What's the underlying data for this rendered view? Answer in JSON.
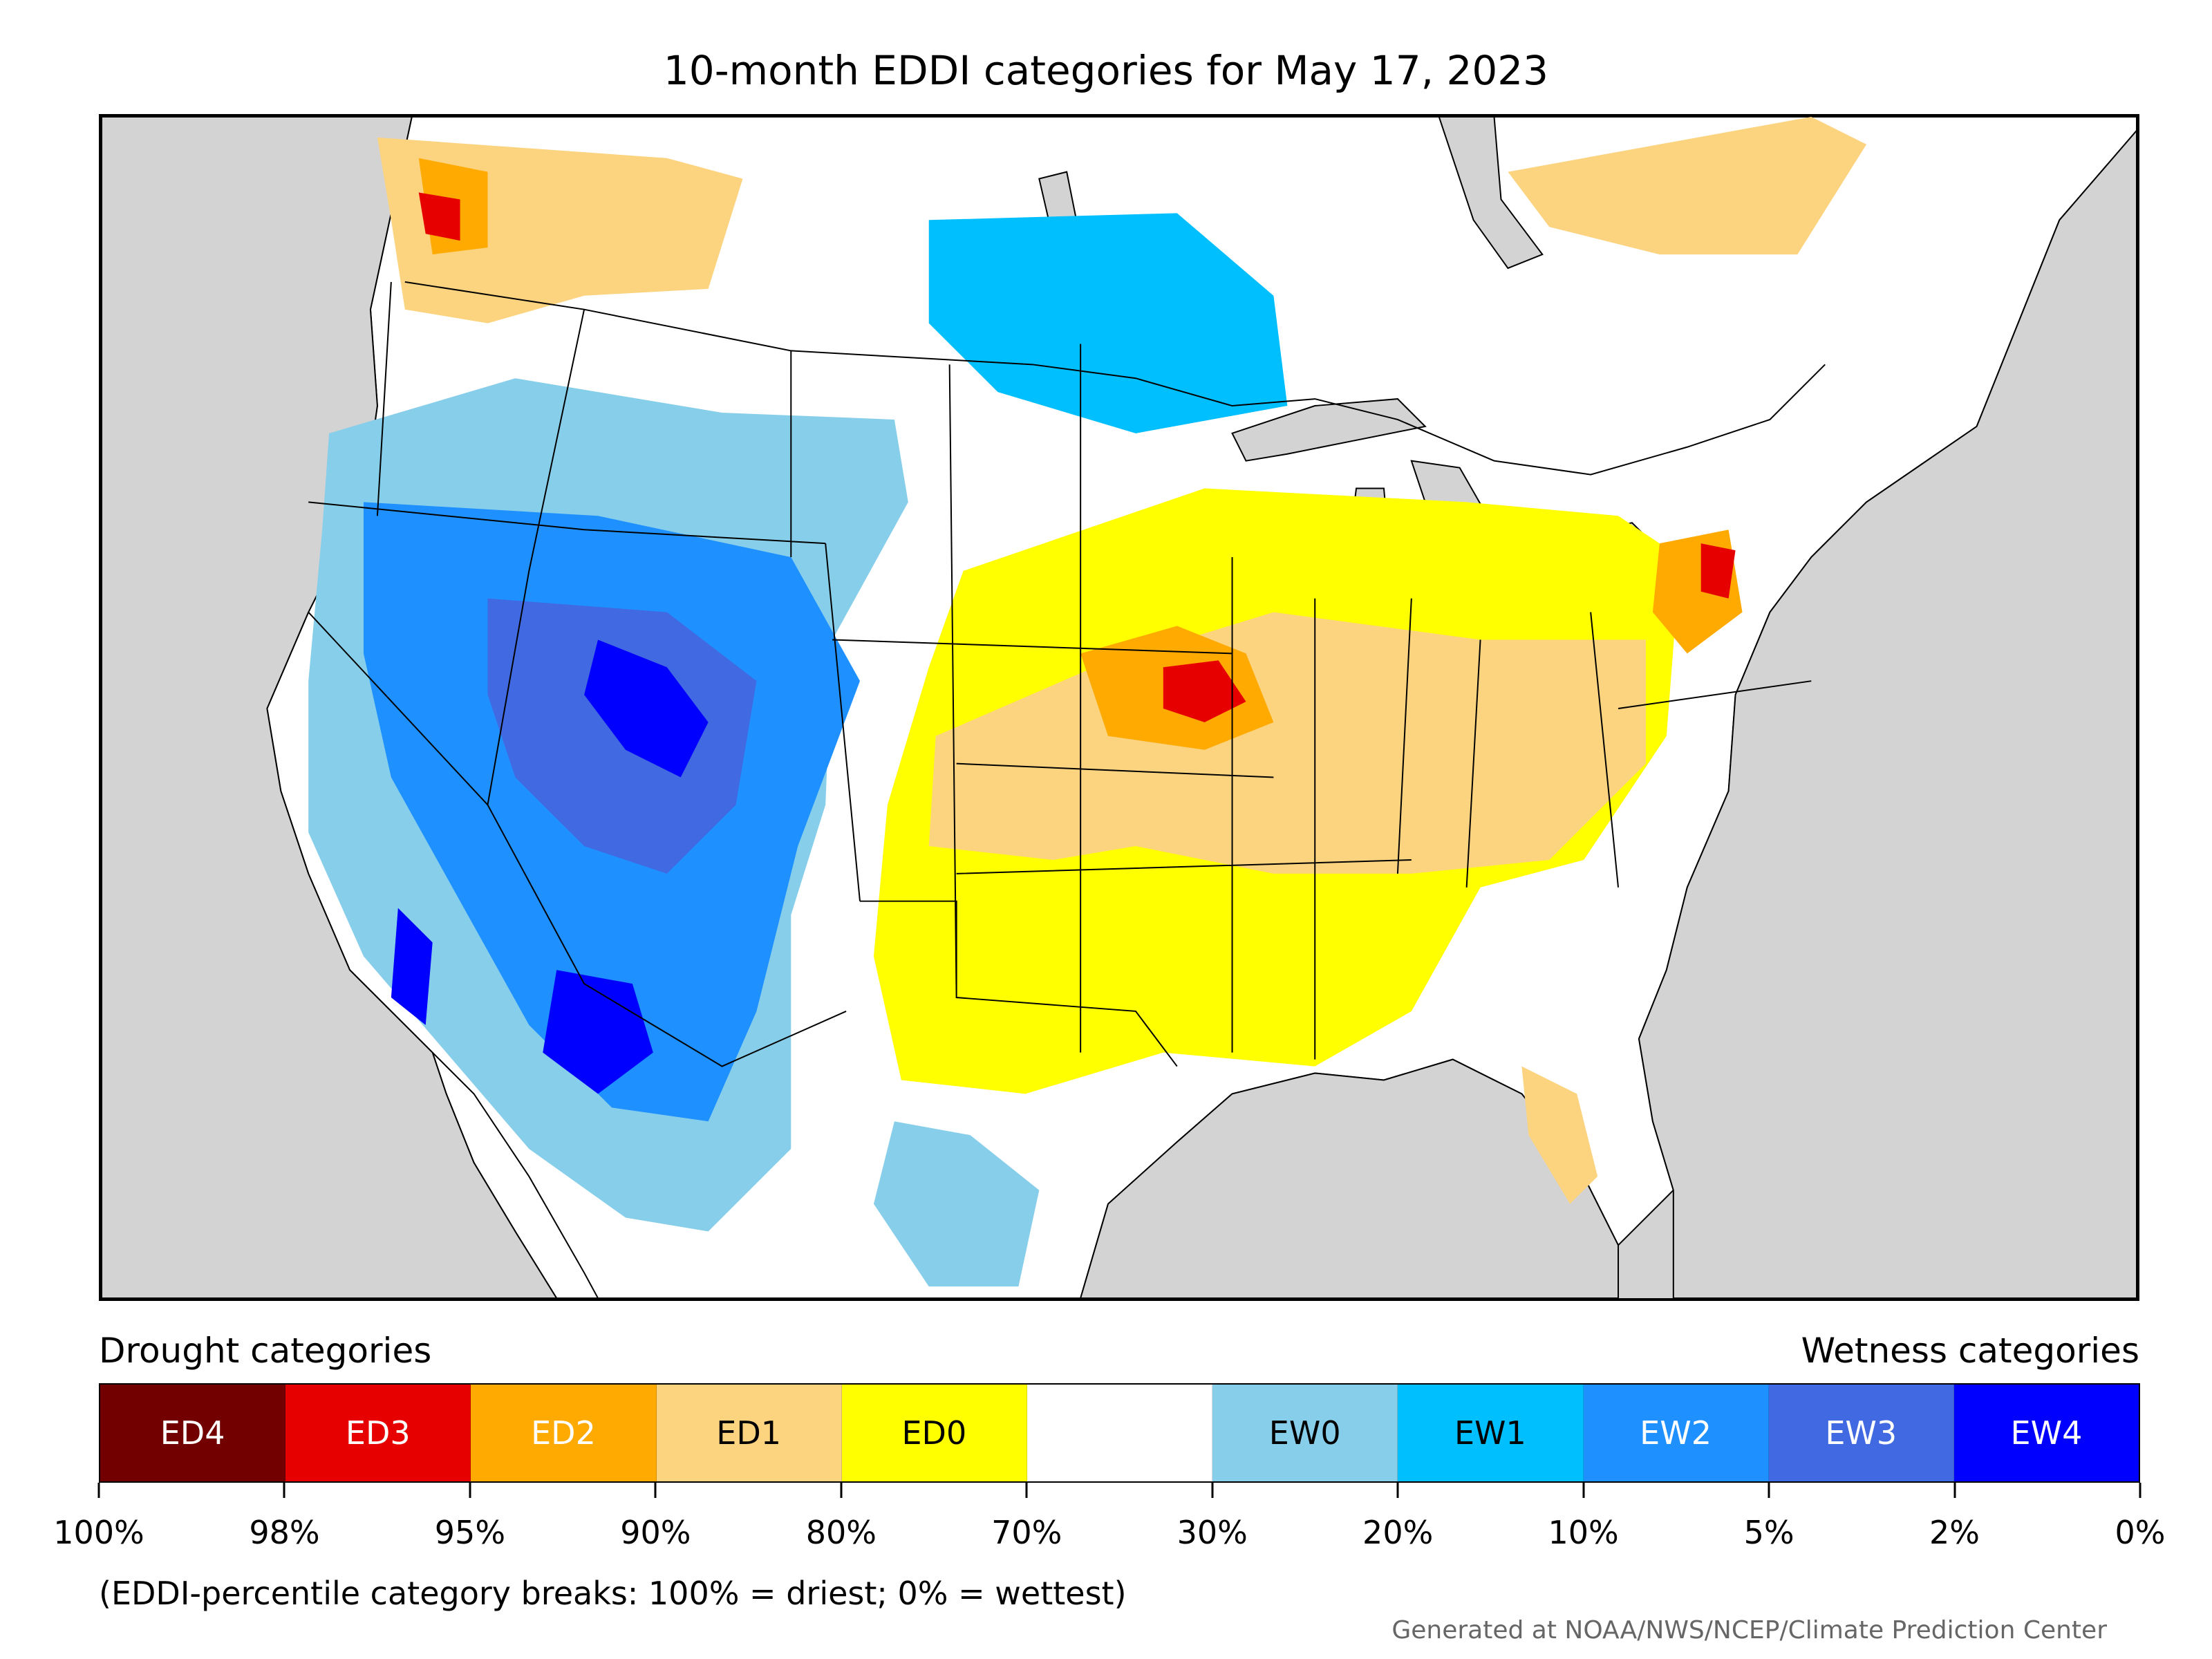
{
  "title": "10-month EDDI categories for May 17, 2023",
  "map": {
    "region": "contiguous-united-states",
    "colors": {
      "ocean": "#d3d3d3",
      "land": "#ffffff",
      "borders": "#000000"
    },
    "regions": [
      {
        "name": "pacific-northwest",
        "category": "ED1"
      },
      {
        "name": "western-washington-hotspot",
        "category": "ED3"
      },
      {
        "name": "great-basin-southwest",
        "category": "EW2"
      },
      {
        "name": "utah-arizona-core",
        "category": "EW4"
      },
      {
        "name": "southern-plains-midwest",
        "category": "ED1"
      },
      {
        "name": "iowa-illinois-hotspot",
        "category": "ED3"
      },
      {
        "name": "northern-plains-canada",
        "category": "EW1"
      },
      {
        "name": "ohio-valley",
        "category": "ED1"
      },
      {
        "name": "new-england-coast",
        "category": "ED2"
      },
      {
        "name": "south-texas-coast",
        "category": "EW0"
      },
      {
        "name": "florida",
        "category": "ED1"
      },
      {
        "name": "quebec",
        "category": "ED1"
      }
    ]
  },
  "legend": {
    "drought_label": "Drought categories",
    "wetness_label": "Wetness categories",
    "categories": [
      {
        "label": "ED4",
        "color": "#730000",
        "text_color": "#ffffff"
      },
      {
        "label": "ED3",
        "color": "#e60000",
        "text_color": "#ffffff"
      },
      {
        "label": "ED2",
        "color": "#ffaa00",
        "text_color": "#ffffff"
      },
      {
        "label": "ED1",
        "color": "#fcd37f",
        "text_color": "#000000"
      },
      {
        "label": "ED0",
        "color": "#ffff00",
        "text_color": "#000000"
      },
      {
        "label": "",
        "color": "#ffffff",
        "text_color": "#000000"
      },
      {
        "label": "EW0",
        "color": "#87ceeb",
        "text_color": "#000000"
      },
      {
        "label": "EW1",
        "color": "#00bfff",
        "text_color": "#000000"
      },
      {
        "label": "EW2",
        "color": "#1e90ff",
        "text_color": "#ffffff"
      },
      {
        "label": "EW3",
        "color": "#4169e1",
        "text_color": "#ffffff"
      },
      {
        "label": "EW4",
        "color": "#0000ff",
        "text_color": "#ffffff"
      }
    ],
    "ticks": [
      "100%",
      "98%",
      "95%",
      "90%",
      "80%",
      "70%",
      "30%",
      "20%",
      "10%",
      "5%",
      "2%",
      "0%"
    ]
  },
  "note": "(EDDI-percentile category breaks: 100% = driest; 0% = wettest)",
  "credit": "Generated at NOAA/NWS/NCEP/Climate Prediction Center"
}
